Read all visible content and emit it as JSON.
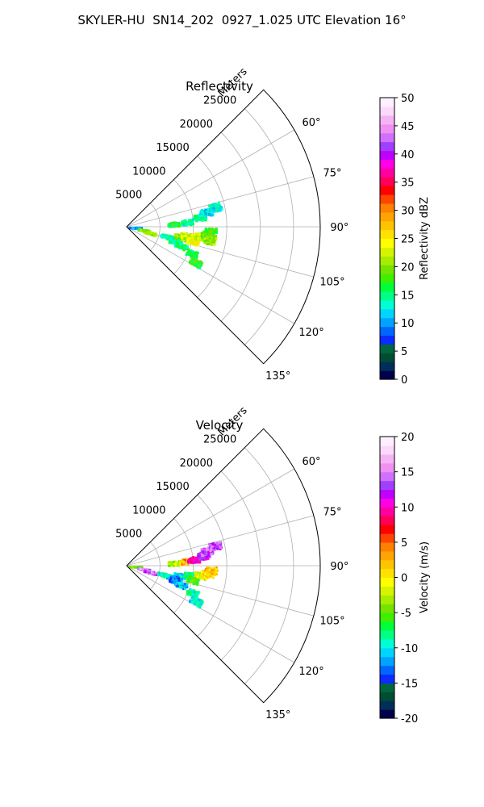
{
  "figure": {
    "title": "SKYLER-HU  SN14_202  0927_1.025 UTC Elevation 16°"
  },
  "colors": {
    "grid": "#b0b0b0",
    "frame": "#000000"
  },
  "chart_data": [
    {
      "type": "heatmap",
      "title": "Reflectivity",
      "projection": "polar-sector",
      "range_label": "Meters",
      "range_ticks": [
        5000,
        10000,
        15000,
        20000,
        25000
      ],
      "range_max": 29000,
      "azimuth_range_deg": [
        45,
        135
      ],
      "azimuth_ticks": [
        60,
        75,
        90,
        105,
        120,
        135
      ],
      "azimuth_tick_labels": [
        "60°",
        "75°",
        "90°",
        "105°",
        "120°",
        "135°"
      ],
      "grid": true,
      "colorbar": {
        "label": "Reflectivity dBZ",
        "min": 0,
        "max": 50,
        "ticks": [
          0,
          5,
          10,
          15,
          20,
          25,
          30,
          35,
          40,
          45,
          50
        ],
        "colors": [
          "#00004c",
          "#002e5a",
          "#004d33",
          "#00663f",
          "#0b2bff",
          "#0066ff",
          "#00a3ff",
          "#00d4ff",
          "#00ffd4",
          "#00ff85",
          "#00ff3a",
          "#3fef00",
          "#74e300",
          "#a8ec00",
          "#d4f400",
          "#ffff00",
          "#ffe200",
          "#ffc400",
          "#ffa400",
          "#ff7f00",
          "#ff4400",
          "#ff0000",
          "#ff0055",
          "#ff00a0",
          "#ff00e6",
          "#c000ff",
          "#a040ff",
          "#d070ff",
          "#f090f0",
          "#f4b4f4",
          "#fcd8fc",
          "#fff0ff"
        ]
      },
      "echoes": [
        {
          "az": 100,
          "r": 8000,
          "value": 21
        },
        {
          "az": 98,
          "r": 9000,
          "value": 22
        },
        {
          "az": 102,
          "r": 10000,
          "value": 24
        },
        {
          "az": 97,
          "r": 11000,
          "value": 23
        },
        {
          "az": 95,
          "r": 12000,
          "value": 19
        },
        {
          "az": 93,
          "r": 12500,
          "value": 18
        },
        {
          "az": 104,
          "r": 7000,
          "value": 17
        },
        {
          "az": 107,
          "r": 7500,
          "value": 15
        },
        {
          "az": 109,
          "r": 8500,
          "value": 16
        },
        {
          "az": 103,
          "r": 6000,
          "value": 14
        },
        {
          "az": 99,
          "r": 12500,
          "value": 20
        },
        {
          "az": 86,
          "r": 7000,
          "value": 17
        },
        {
          "az": 85,
          "r": 9000,
          "value": 14
        },
        {
          "az": 82,
          "r": 11000,
          "value": 15
        },
        {
          "az": 79,
          "r": 12000,
          "value": 12
        },
        {
          "az": 77,
          "r": 13500,
          "value": 13
        },
        {
          "az": 92,
          "r": 1200,
          "value": 10
        },
        {
          "az": 100,
          "r": 2500,
          "value": 19
        },
        {
          "az": 104,
          "r": 3500,
          "value": 21
        },
        {
          "az": 112,
          "r": 10500,
          "value": 16
        },
        {
          "az": 117,
          "r": 11500,
          "value": 17
        }
      ]
    },
    {
      "type": "heatmap",
      "title": "Velocity",
      "projection": "polar-sector",
      "range_label": "Meters",
      "range_ticks": [
        5000,
        10000,
        15000,
        20000,
        25000
      ],
      "range_max": 29000,
      "azimuth_range_deg": [
        45,
        135
      ],
      "azimuth_ticks": [
        60,
        75,
        90,
        105,
        120,
        135
      ],
      "azimuth_tick_labels": [
        "60°",
        "75°",
        "90°",
        "105°",
        "120°",
        "135°"
      ],
      "grid": true,
      "colorbar": {
        "label": "Velocity (m/s)",
        "min": -20,
        "max": 20,
        "ticks": [
          -20,
          -15,
          -10,
          -5,
          0,
          5,
          10,
          15,
          20
        ],
        "colors": [
          "#00004c",
          "#002e5a",
          "#004d33",
          "#00663f",
          "#0b2bff",
          "#0066ff",
          "#00a3ff",
          "#00d4ff",
          "#00ffd4",
          "#00ff85",
          "#00ff3a",
          "#3fef00",
          "#74e300",
          "#a8ec00",
          "#d4f400",
          "#ffff00",
          "#ffe200",
          "#ffc400",
          "#ffa400",
          "#ff7f00",
          "#ff4400",
          "#ff0000",
          "#ff0055",
          "#ff00a0",
          "#ff00e6",
          "#c000ff",
          "#a040ff",
          "#d070ff",
          "#f090f0",
          "#f4b4f4",
          "#fcd8fc",
          "#fff0ff"
        ]
      },
      "echoes": [
        {
          "az": 100,
          "r": 8000,
          "value": -10
        },
        {
          "az": 98,
          "r": 9500,
          "value": -8
        },
        {
          "az": 97,
          "r": 11000,
          "value": -2
        },
        {
          "az": 95,
          "r": 12000,
          "value": 1
        },
        {
          "az": 93,
          "r": 12500,
          "value": 2
        },
        {
          "az": 102,
          "r": 10000,
          "value": -5
        },
        {
          "az": 104,
          "r": 7000,
          "value": -12
        },
        {
          "az": 107,
          "r": 7500,
          "value": -13
        },
        {
          "az": 109,
          "r": 8500,
          "value": -11
        },
        {
          "az": 103,
          "r": 5500,
          "value": -9
        },
        {
          "az": 86,
          "r": 7000,
          "value": -3
        },
        {
          "az": 85,
          "r": 9000,
          "value": 3
        },
        {
          "az": 84,
          "r": 10000,
          "value": 10
        },
        {
          "az": 82,
          "r": 11500,
          "value": 12
        },
        {
          "az": 79,
          "r": 12000,
          "value": 14
        },
        {
          "az": 77,
          "r": 13500,
          "value": 14
        },
        {
          "az": 92,
          "r": 1200,
          "value": -4
        },
        {
          "az": 100,
          "r": 2500,
          "value": 15
        },
        {
          "az": 104,
          "r": 3500,
          "value": 14
        },
        {
          "az": 112,
          "r": 10500,
          "value": -8
        },
        {
          "az": 117,
          "r": 11500,
          "value": -10
        }
      ]
    }
  ]
}
